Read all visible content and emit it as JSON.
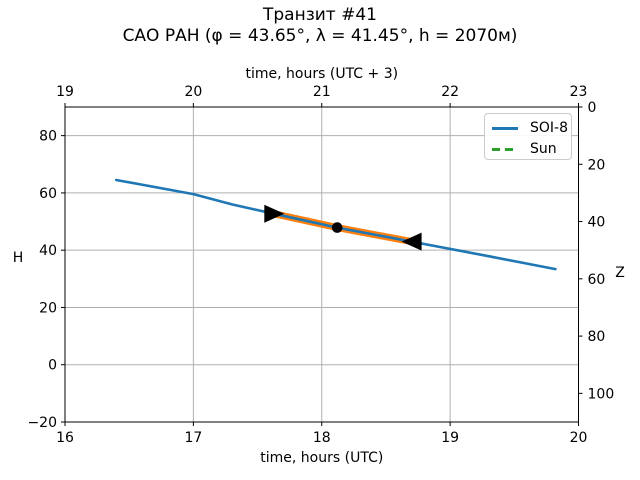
{
  "title": "Транзит #41",
  "subtitle": "САО РАН (φ = 43.65°, λ = 41.45°, h = 2070м)",
  "axes": {
    "top_label": "time, hours (UTC + 3)",
    "bottom_label": "time, hours (UTC)",
    "left_label": "H",
    "right_label": "Z"
  },
  "legend": {
    "position": "upper-right",
    "entries": [
      {
        "label": "SOI-8",
        "color": "#1f77b4",
        "style": "solid"
      },
      {
        "label": "Sun",
        "color": "#2ca02c",
        "style": "dashed"
      }
    ]
  },
  "chart_data": {
    "type": "line",
    "title": "Транзит #41",
    "subtitle": "САО РАН (φ = 43.65°, λ = 41.45°, h = 2070м)",
    "xlabel_bottom": "time, hours (UTC)",
    "xlabel_top": "time, hours (UTC + 3)",
    "ylabel_left": "H",
    "ylabel_right": "Z",
    "xlim": [
      16,
      20
    ],
    "xlim_top": [
      19,
      23
    ],
    "ylim_left": [
      -20,
      90
    ],
    "ylim_right": [
      110,
      0
    ],
    "xticks_bottom": [
      16,
      17,
      18,
      19,
      20
    ],
    "xticks_top": [
      19,
      20,
      21,
      22,
      23
    ],
    "yticks_left": [
      -20,
      0,
      20,
      40,
      60,
      80
    ],
    "yticks_right": [
      0,
      20,
      40,
      60,
      80,
      100
    ],
    "grid": true,
    "series": [
      {
        "name": "SOI-8",
        "color": "#1f77b4",
        "style": "solid",
        "width": 2.6,
        "points": [
          [
            16.4,
            64.5
          ],
          [
            17.0,
            59.6
          ],
          [
            17.3,
            56.0
          ],
          [
            17.63,
            52.7
          ],
          [
            18.12,
            47.9
          ],
          [
            18.7,
            43.0
          ],
          [
            19.3,
            37.9
          ],
          [
            19.82,
            33.4
          ]
        ]
      },
      {
        "name": "Sun",
        "color": "#2ca02c",
        "style": "dashed",
        "width": 2.6,
        "points": []
      }
    ],
    "highlight_segment": {
      "color": "#ff7f0e",
      "width": 7,
      "points": [
        [
          17.59,
          53.1
        ],
        [
          17.63,
          52.7
        ],
        [
          18.12,
          47.9
        ],
        [
          18.7,
          43.0
        ],
        [
          18.76,
          42.4
        ]
      ]
    },
    "markers": [
      {
        "shape": "triangle-right",
        "x": 17.63,
        "y": 52.7,
        "color": "#000000"
      },
      {
        "shape": "circle",
        "x": 18.12,
        "y": 47.9,
        "color": "#000000"
      },
      {
        "shape": "triangle-left",
        "x": 18.7,
        "y": 43.0,
        "color": "#000000"
      }
    ],
    "colors": {
      "grid": "#b0b0b0",
      "spine": "#000000",
      "text": "#000000"
    }
  }
}
